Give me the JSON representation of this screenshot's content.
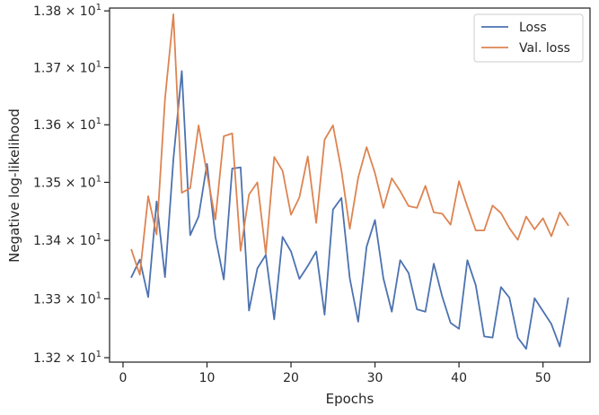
{
  "chart_data": {
    "type": "line",
    "title": "",
    "xlabel": "Epochs",
    "ylabel": "Negative log-likelihood",
    "yscale": "log",
    "xlim": [
      -1.6,
      55.6
    ],
    "ylim": [
      13.1925,
      13.805
    ],
    "xticks": [
      0,
      10,
      20,
      30,
      40,
      50
    ],
    "xtick_labels": [
      "0",
      "10",
      "20",
      "30",
      "40",
      "50"
    ],
    "yticks": [
      13.2,
      13.3,
      13.4,
      13.5,
      13.6,
      13.7,
      13.8
    ],
    "ytick_labels": [
      {
        "mantissa": "1.32",
        "exp": "1"
      },
      {
        "mantissa": "1.33",
        "exp": "1"
      },
      {
        "mantissa": "1.34",
        "exp": "1"
      },
      {
        "mantissa": "1.35",
        "exp": "1"
      },
      {
        "mantissa": "1.36",
        "exp": "1"
      },
      {
        "mantissa": "1.37",
        "exp": "1"
      },
      {
        "mantissa": "1.38",
        "exp": "1"
      }
    ],
    "grid": false,
    "legend_position": "top-right",
    "x": [
      1,
      2,
      3,
      4,
      5,
      6,
      7,
      8,
      9,
      10,
      11,
      12,
      13,
      14,
      15,
      16,
      17,
      18,
      19,
      20,
      21,
      22,
      23,
      24,
      25,
      26,
      27,
      28,
      29,
      30,
      31,
      32,
      33,
      34,
      35,
      36,
      37,
      38,
      39,
      40,
      41,
      42,
      43,
      44,
      45,
      46,
      47,
      48,
      49,
      50,
      51,
      52,
      53
    ],
    "series": [
      {
        "name": "Loss",
        "color": "#4c72b0",
        "values": [
          13.337,
          13.367,
          13.303,
          13.467,
          13.337,
          13.54,
          13.694,
          13.409,
          13.441,
          13.532,
          13.406,
          13.333,
          13.524,
          13.526,
          13.28,
          13.352,
          13.375,
          13.265,
          13.406,
          13.381,
          13.334,
          13.356,
          13.381,
          13.273,
          13.453,
          13.473,
          13.335,
          13.261,
          13.389,
          13.435,
          13.335,
          13.278,
          13.366,
          13.344,
          13.282,
          13.278,
          13.36,
          13.304,
          13.259,
          13.249,
          13.366,
          13.323,
          13.236,
          13.234,
          13.32,
          13.302,
          13.234,
          13.215,
          13.301,
          13.279,
          13.257,
          13.219,
          13.301
        ]
      },
      {
        "name": "Val. loss",
        "color": "#dd8452",
        "values": [
          13.384,
          13.341,
          13.476,
          13.41,
          13.645,
          13.794,
          13.482,
          13.49,
          13.599,
          13.515,
          13.436,
          13.58,
          13.585,
          13.382,
          13.479,
          13.5,
          13.377,
          13.544,
          13.52,
          13.444,
          13.474,
          13.545,
          13.43,
          13.574,
          13.599,
          13.521,
          13.42,
          13.508,
          13.561,
          13.516,
          13.456,
          13.507,
          13.485,
          13.459,
          13.456,
          13.494,
          13.448,
          13.446,
          13.427,
          13.502,
          13.458,
          13.417,
          13.417,
          13.46,
          13.447,
          13.421,
          13.401,
          13.441,
          13.419,
          13.438,
          13.407,
          13.448,
          13.426
        ]
      }
    ]
  }
}
